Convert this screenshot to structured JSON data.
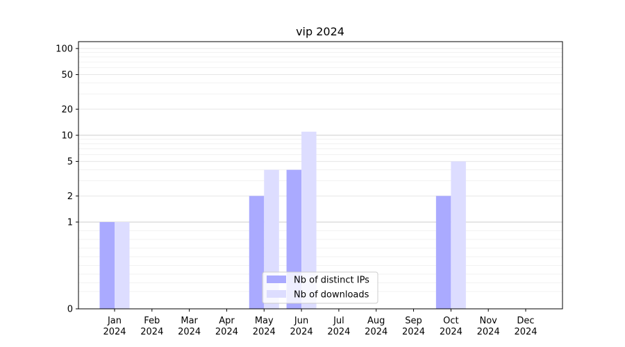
{
  "chart_data": {
    "type": "bar",
    "title": "vip 2024",
    "xlabel": "",
    "ylabel": "",
    "yscale": "symlog",
    "ylim": [
      0,
      120
    ],
    "grid": "y",
    "legend_position": "lower-center",
    "categories": [
      [
        "Jan",
        "2024"
      ],
      [
        "Feb",
        "2024"
      ],
      [
        "Mar",
        "2024"
      ],
      [
        "Apr",
        "2024"
      ],
      [
        "May",
        "2024"
      ],
      [
        "Jun",
        "2024"
      ],
      [
        "Jul",
        "2024"
      ],
      [
        "Aug",
        "2024"
      ],
      [
        "Sep",
        "2024"
      ],
      [
        "Oct",
        "2024"
      ],
      [
        "Nov",
        "2024"
      ],
      [
        "Dec",
        "2024"
      ]
    ],
    "y_ticks": [
      "0",
      "1",
      "2",
      "5",
      "10",
      "20",
      "50",
      "100"
    ],
    "series": [
      {
        "name": "Nb of distinct IPs",
        "color": "#aaaaff",
        "values": [
          1,
          0,
          0,
          0,
          2,
          4,
          0,
          0,
          0,
          2,
          0,
          0
        ]
      },
      {
        "name": "Nb of downloads",
        "color": "#ddddff",
        "values": [
          1,
          0,
          0,
          0,
          4,
          11,
          0,
          0,
          0,
          5,
          0,
          0
        ]
      }
    ]
  }
}
